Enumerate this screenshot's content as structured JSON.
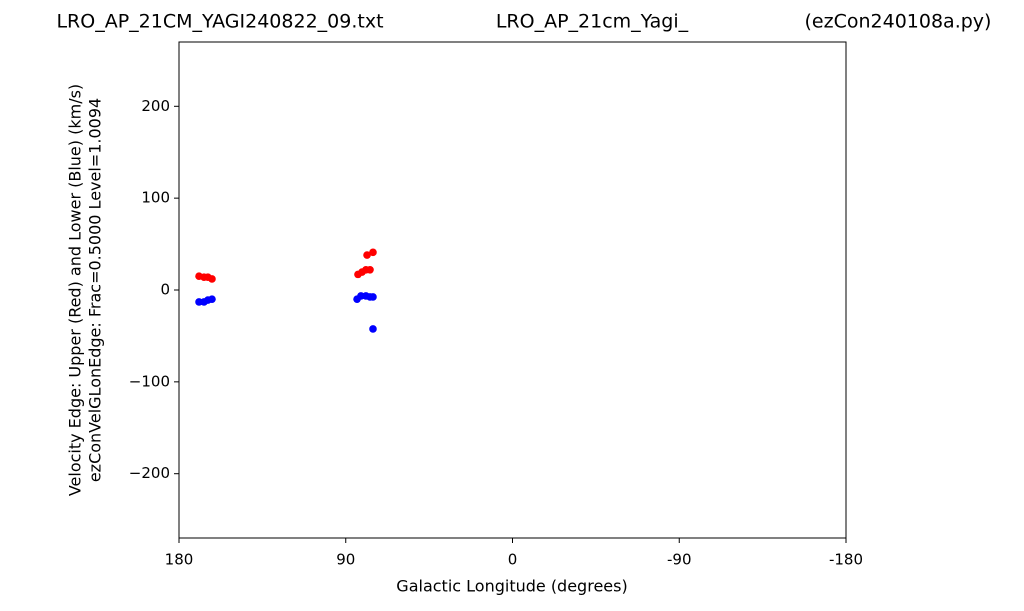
{
  "chart_data": {
    "type": "scatter",
    "titles": [
      "LRO_AP_21CM_YAGI240822_09.txt",
      "LRO_AP_21cm_Yagi_",
      "(ezCon240108a.py)"
    ],
    "y_label": [
      "Velocity Edge: Upper (Red) and Lower (Blue) (km/s)",
      "ezConVelGLonEdge: Frac=0.5000 Level=1.0094"
    ],
    "x_label": "Galactic Longitude (degrees)",
    "xlim": [
      180,
      -180
    ],
    "xticks": [
      180,
      90,
      0,
      -90,
      -180
    ],
    "ylim": [
      -270,
      270
    ],
    "yticks": [
      {
        "value": 200,
        "label": "200"
      },
      {
        "value": 100,
        "label": "100"
      },
      0,
      {
        "value": -100,
        "label": "−100"
      },
      {
        "value": -200,
        "label": "−200"
      }
    ],
    "series": [
      {
        "color": "#ff0000",
        "x": [
          169.2,
          166.5,
          164.4,
          162.2,
          83.4,
          81.2,
          79.1,
          76.9,
          78.5,
          75.3
        ],
        "values": [
          15,
          14,
          14,
          12,
          17,
          19.5,
          22,
          22,
          38,
          41
        ]
      },
      {
        "color": "#0000ff",
        "x": [
          169.2,
          166.5,
          164.4,
          162.2,
          83.9,
          81.8,
          79.1,
          76.9,
          75.3,
          75.3
        ],
        "values": [
          -13,
          -13,
          -11,
          -10,
          -10,
          -6.5,
          -6.5,
          -7.6,
          -7.6,
          -42.4
        ]
      }
    ]
  }
}
